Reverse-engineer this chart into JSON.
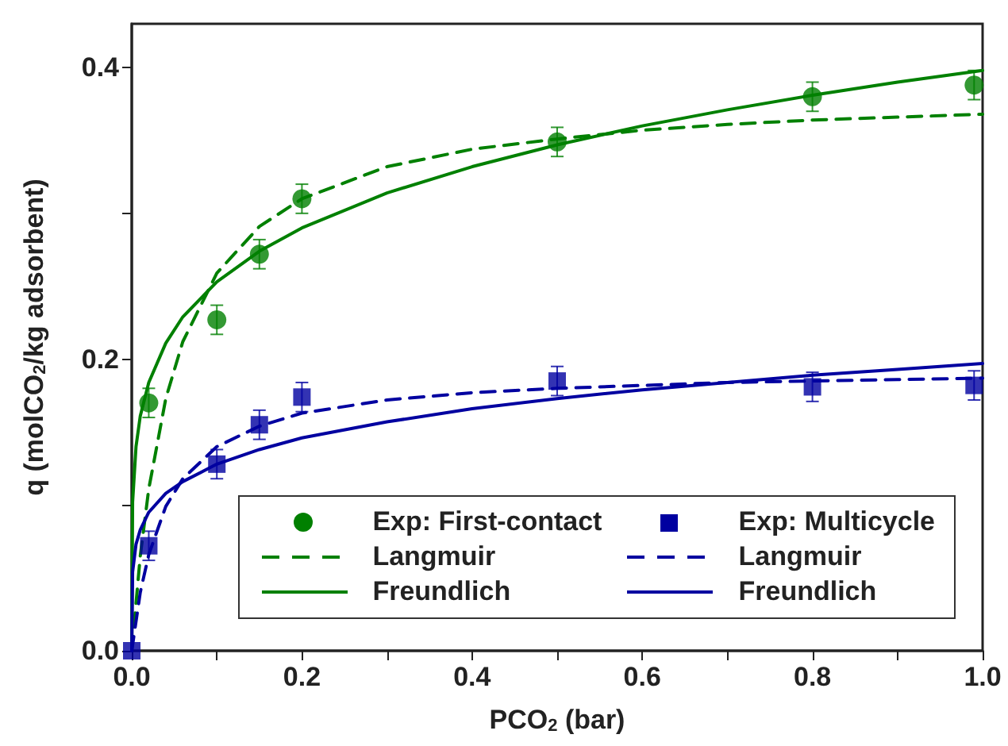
{
  "chart_data": {
    "type": "scatter",
    "xlabel": "PCO$_{2}$ (bar)",
    "ylabel": "q (molCO$_{2}$/kg adsorbent)",
    "xlim": [
      0,
      1
    ],
    "ylim": [
      0,
      0.43
    ],
    "xticks": [
      {
        "value": 0,
        "label": "0.0"
      },
      {
        "value": 0.1,
        "label": null
      },
      {
        "value": 0.2,
        "label": "0.2"
      },
      {
        "value": 0.3,
        "label": null
      },
      {
        "value": 0.4,
        "label": "0.4"
      },
      {
        "value": 0.5,
        "label": null
      },
      {
        "value": 0.6,
        "label": "0.6"
      },
      {
        "value": 0.7,
        "label": null
      },
      {
        "value": 0.8,
        "label": "0.8"
      },
      {
        "value": 0.9,
        "label": null
      },
      {
        "value": 1,
        "label": "1.0"
      }
    ],
    "yticks": [
      {
        "value": 0,
        "label": "0.0"
      },
      {
        "value": 0.1,
        "label": null
      },
      {
        "value": 0.2,
        "label": "0.2"
      },
      {
        "value": 0.3,
        "label": null
      },
      {
        "value": 0.4,
        "label": "0.4"
      }
    ],
    "grid": false,
    "legend": "bottom right",
    "series": [
      {
        "name": "Exp: First-contact",
        "marker": "circle",
        "color": "#008000",
        "x": [
          0.02,
          0.1,
          0.15,
          0.2,
          0.5,
          0.8,
          0.99
        ],
        "values": [
          0.17,
          0.227,
          0.272,
          0.31,
          0.349,
          0.38,
          0.388
        ],
        "errors": [
          0.01,
          0.01,
          0.01,
          0.01,
          0.01,
          0.01,
          0.01
        ]
      },
      {
        "name": "Langmuir",
        "type": "line",
        "line_style": "dashed",
        "color": "#008000",
        "x": [
          0,
          0.01,
          0.02,
          0.04,
          0.06,
          0.1,
          0.15,
          0.2,
          0.3,
          0.4,
          0.5,
          0.6,
          0.7,
          0.8,
          0.9,
          1.0
        ],
        "values": [
          0,
          0.065,
          0.111,
          0.173,
          0.212,
          0.259,
          0.291,
          0.31,
          0.332,
          0.344,
          0.351,
          0.357,
          0.361,
          0.364,
          0.366,
          0.368
        ]
      },
      {
        "name": "Freundlich",
        "type": "line",
        "line_style": "solid",
        "color": "#008000",
        "x": [
          0,
          0.001,
          0.005,
          0.01,
          0.02,
          0.04,
          0.06,
          0.1,
          0.15,
          0.2,
          0.3,
          0.4,
          0.5,
          0.6,
          0.7,
          0.8,
          0.9,
          1.0
        ],
        "values": [
          0,
          0.102,
          0.14,
          0.161,
          0.184,
          0.211,
          0.229,
          0.253,
          0.274,
          0.29,
          0.314,
          0.332,
          0.347,
          0.36,
          0.371,
          0.381,
          0.39,
          0.398
        ]
      },
      {
        "name": "Exp: Multicycle",
        "marker": "square",
        "color": "#0000a0",
        "x": [
          0,
          0.02,
          0.1,
          0.15,
          0.2,
          0.5,
          0.8,
          0.99
        ],
        "values": [
          0,
          0.072,
          0.128,
          0.155,
          0.174,
          0.185,
          0.181,
          0.182
        ],
        "errors": [
          null,
          0.01,
          0.01,
          0.01,
          0.01,
          0.01,
          0.01,
          0.01
        ]
      },
      {
        "name": "Langmuir",
        "type": "line",
        "line_style": "dashed",
        "color": "#0000a0",
        "x": [
          0,
          0.01,
          0.02,
          0.04,
          0.06,
          0.1,
          0.15,
          0.2,
          0.3,
          0.4,
          0.5,
          0.6,
          0.7,
          0.8,
          0.9,
          1.0
        ],
        "values": [
          0,
          0.04,
          0.066,
          0.099,
          0.118,
          0.14,
          0.154,
          0.163,
          0.172,
          0.177,
          0.18,
          0.182,
          0.184,
          0.185,
          0.186,
          0.187
        ]
      },
      {
        "name": "Freundlich",
        "type": "line",
        "line_style": "solid",
        "color": "#0000a0",
        "x": [
          0,
          0.001,
          0.005,
          0.01,
          0.02,
          0.04,
          0.06,
          0.1,
          0.15,
          0.2,
          0.3,
          0.4,
          0.5,
          0.6,
          0.7,
          0.8,
          0.9,
          1.0
        ],
        "values": [
          0,
          0.054,
          0.073,
          0.083,
          0.095,
          0.108,
          0.116,
          0.128,
          0.138,
          0.146,
          0.157,
          0.166,
          0.173,
          0.179,
          0.184,
          0.189,
          0.193,
          0.197
        ]
      }
    ]
  }
}
